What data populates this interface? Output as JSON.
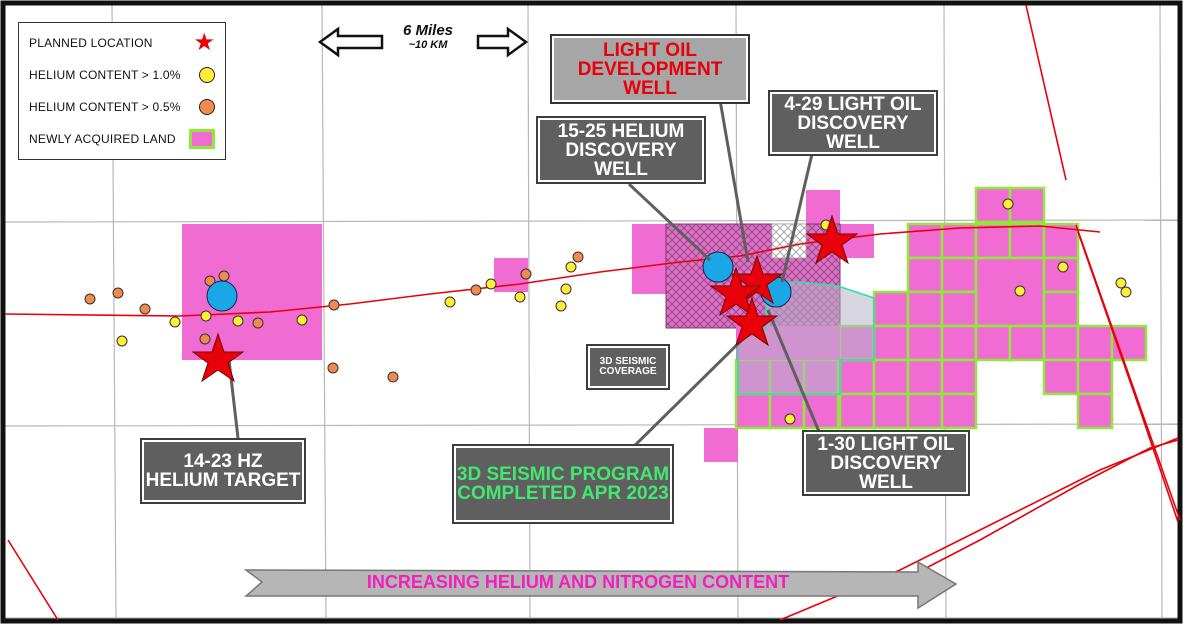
{
  "legend": {
    "items": [
      {
        "label": "PLANNED LOCATION",
        "symbol": "star",
        "color": "#e8000b"
      },
      {
        "label": "HELIUM CONTENT > 1.0%",
        "symbol": "dot",
        "color": "#ffee33"
      },
      {
        "label": "HELIUM CONTENT > 0.5%",
        "symbol": "dot",
        "color": "#f08a50"
      },
      {
        "label": "NEWLY ACQUIRED LAND",
        "symbol": "box",
        "color": "#f06cd3",
        "border": "#8fe83a"
      }
    ]
  },
  "scale": {
    "distance": "6 Miles",
    "metric": "~10 KM"
  },
  "callouts": {
    "light_oil_dev": "LIGHT OIL\nDEVELOPMENT WELL",
    "helium_1525": "15-25 HELIUM\nDISCOVERY WELL",
    "light_oil_429": "4-29 LIGHT OIL\nDISCOVERY WELL",
    "seismic_coverage": "3D SEISMIC\nCOVERAGE",
    "hz_1423": "14-23 HZ\nHELIUM TARGET",
    "seismic_program": "3D SEISMIC PROGRAM\nCOMPLETED APR 2023",
    "light_oil_130": "1-30 LIGHT OIL\nDISCOVERY WELL"
  },
  "gradient_arrow": {
    "label": "INCREASING HELIUM AND NITROGEN CONTENT"
  },
  "colors": {
    "star": "#e8000b",
    "helium_high": "#ffee33",
    "helium_mid": "#f08a50",
    "land_fill": "#f06cd3",
    "land_border": "#8fe83a",
    "discovery_well": "#1aa7e6",
    "seismic_outline": "#2de0a8",
    "callout_bg": "#5f5f5f",
    "dev_well_text": "#e8000b",
    "seismic_program_text": "#43e870",
    "gradient_text": "#f21fbf",
    "pipeline": "#e8000b"
  }
}
